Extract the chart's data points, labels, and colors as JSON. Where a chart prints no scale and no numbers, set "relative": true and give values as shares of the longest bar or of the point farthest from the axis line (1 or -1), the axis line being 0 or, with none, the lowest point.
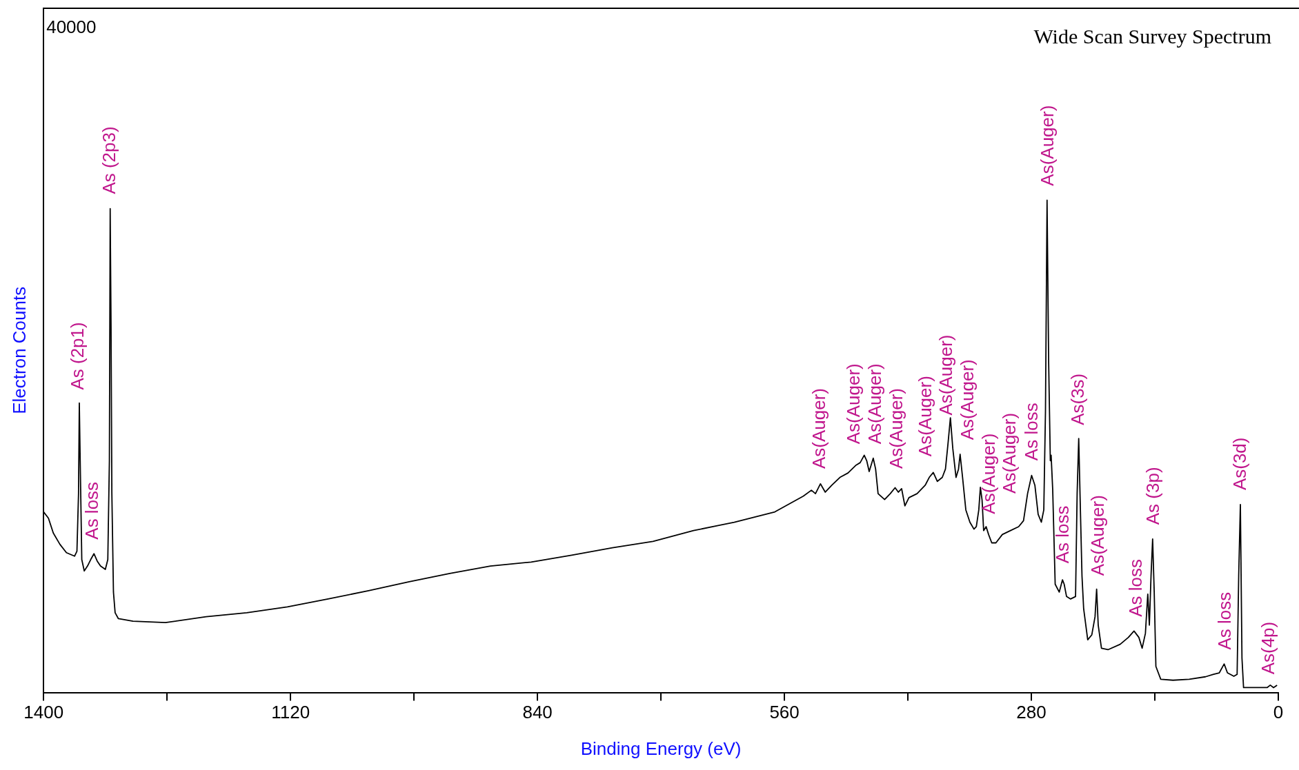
{
  "chart_data": {
    "type": "line",
    "title": "Wide Scan Survey Spectrum",
    "xlabel": "Binding Energy (eV)",
    "ylabel": "Electron Counts",
    "relative": true,
    "grid": false,
    "legend": false,
    "marker": "none",
    "line_style": "solid",
    "xlim": [
      1400,
      0
    ],
    "xticks": [
      1400,
      {
        "value": 1260,
        "label": null
      },
      1120,
      {
        "value": 980,
        "label": null
      },
      840,
      {
        "value": 700,
        "label": null
      },
      560,
      {
        "value": 420,
        "label": null
      },
      280,
      {
        "value": 140,
        "label": null
      },
      0
    ],
    "x": [
      1400,
      1394.5,
      1389.0,
      1381.5,
      1374.1,
      1364.9,
      1362.2,
      1360.4,
      1359.5,
      1358.5,
      1356.7,
      1353.9,
      1350.2,
      1346.6,
      1342.9,
      1339.2,
      1335.5,
      1330.0,
      1327.2,
      1325.4,
      1324.5,
      1323.5,
      1322.6,
      1320.8,
      1318.9,
      1315.2,
      1298.7,
      1261.8,
      1215.7,
      1169.7,
      1123.6,
      1077.5,
      1031.5,
      985.4,
      939.4,
      893.3,
      847.2,
      801.2,
      755.1,
      709.0,
      663.0,
      616.9,
      570.8,
      538.6,
      529.4,
      524.8,
      519.2,
      513.7,
      506.3,
      497.1,
      487.9,
      478.7,
      474.1,
      469.5,
      466.7,
      463.9,
      459.3,
      456.6,
      453.8,
      446.4,
      440.0,
      434.5,
      430.8,
      427.1,
      423.4,
      418.8,
      409.6,
      400.4,
      395.8,
      391.2,
      386.6,
      381.0,
      377.4,
      374.6,
      371.8,
      369.1,
      365.4,
      362.6,
      360.8,
      358.0,
      354.3,
      349.7,
      345.1,
      342.4,
      339.6,
      337.8,
      335.9,
      334.1,
      331.3,
      328.5,
      324.9,
      320.2,
      312.9,
      303.6,
      294.4,
      288.9,
      284.3,
      279.7,
      276.0,
      272.3,
      268.7,
      265.9,
      264.0,
      262.2,
      260.4,
      258.5,
      257.6,
      255.8,
      253.0,
      248.4,
      244.7,
      242.8,
      240.1,
      235.5,
      229.9,
      228.1,
      226.3,
      224.4,
      222.6,
      220.7,
      216.1,
      211.5,
      207.8,
      206.0,
      204.2,
      200.5,
      193.1,
      179.3,
      170.0,
      163.6,
      158.1,
      154.4,
      150.7,
      148.0,
      146.2,
      144.3,
      142.5,
      140.7,
      138.8,
      133.3,
      119.4,
      101.0,
      82.6,
      73.3,
      66.9,
      61.4,
      57.7,
      50.4,
      46.7,
      44.9,
      43.0,
      41.2,
      39.4,
      22.7,
      12.7,
      9.1,
      5.4,
      1.4
    ],
    "series": [
      {
        "color": "#000000",
        "values": [
          0.367,
          0.354,
          0.324,
          0.301,
          0.284,
          0.277,
          0.287,
          0.404,
          0.588,
          0.471,
          0.27,
          0.247,
          0.257,
          0.27,
          0.282,
          0.267,
          0.257,
          0.25,
          0.27,
          0.471,
          0.983,
          0.738,
          0.404,
          0.204,
          0.162,
          0.15,
          0.145,
          0.142,
          0.154,
          0.162,
          0.174,
          0.19,
          0.207,
          0.225,
          0.242,
          0.257,
          0.265,
          0.279,
          0.294,
          0.307,
          0.329,
          0.346,
          0.367,
          0.399,
          0.411,
          0.404,
          0.424,
          0.407,
          0.421,
          0.437,
          0.446,
          0.462,
          0.467,
          0.482,
          0.471,
          0.449,
          0.476,
          0.454,
          0.404,
          0.392,
          0.404,
          0.416,
          0.407,
          0.414,
          0.379,
          0.396,
          0.404,
          0.421,
          0.437,
          0.447,
          0.429,
          0.437,
          0.454,
          0.504,
          0.558,
          0.496,
          0.437,
          0.454,
          0.484,
          0.437,
          0.371,
          0.346,
          0.332,
          0.337,
          0.371,
          0.417,
          0.391,
          0.329,
          0.337,
          0.321,
          0.304,
          0.304,
          0.321,
          0.329,
          0.337,
          0.349,
          0.404,
          0.441,
          0.421,
          0.362,
          0.346,
          0.371,
          0.571,
          1,
          0.671,
          0.471,
          0.482,
          0.412,
          0.22,
          0.204,
          0.229,
          0.22,
          0.195,
          0.19,
          0.195,
          0.404,
          0.516,
          0.371,
          0.237,
          0.17,
          0.107,
          0.117,
          0.154,
          0.21,
          0.137,
          0.09,
          0.087,
          0.098,
          0.112,
          0.125,
          0.112,
          0.09,
          0.12,
          0.2,
          0.137,
          0.237,
          0.312,
          0.204,
          0.053,
          0.027,
          0.025,
          0.027,
          0.032,
          0.037,
          0.04,
          0.058,
          0.04,
          0.033,
          0.037,
          0.237,
          0.382,
          0.07,
          0.01,
          0.01,
          0.01,
          0.015,
          0.01,
          0.015
        ]
      }
    ],
    "annotations": [
      "40000",
      "As (2p1)",
      "As loss",
      "As (2p3)",
      "As(Auger)",
      "As(Auger)",
      "As(Auger)",
      "As(Auger)",
      "As(Auger)",
      "As(Auger)",
      "As(Auger)",
      "As(Auger)",
      "As(Auger)",
      "As loss",
      "As(Auger)",
      "As loss",
      "As(3s)",
      "As(Auger)",
      "As loss",
      "As (3p)",
      "As loss",
      "As(3d)",
      "As(4p)"
    ]
  }
}
